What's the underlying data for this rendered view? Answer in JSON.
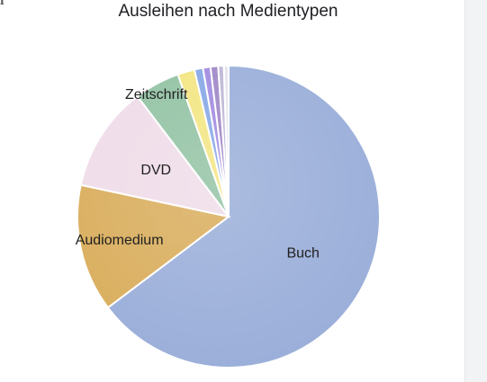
{
  "header": {
    "info_icon": "info-icon"
  },
  "chart_data": {
    "type": "pie",
    "title": "Ausleihen nach Medientypen",
    "categories": [
      "Buch",
      "Audiomedium",
      "DVD",
      "Zeitschrift",
      "",
      "",
      "",
      "",
      "",
      ""
    ],
    "values": [
      64.0,
      13.5,
      11.2,
      4.8,
      1.8,
      0.9,
      0.8,
      0.8,
      0.6,
      0.5
    ],
    "label_visible": [
      true,
      true,
      true,
      true,
      false,
      false,
      false,
      false,
      false,
      false
    ],
    "colors": [
      "#9aaed9",
      "#d9ad5c",
      "#efdce8",
      "#92c2a3",
      "#f3e582",
      "#86a7e6",
      "#a08ae0",
      "#9f86c6",
      "#bdb5d6",
      "#e4e4ee"
    ],
    "legend": "none",
    "start": "top",
    "direction": "clockwise"
  }
}
